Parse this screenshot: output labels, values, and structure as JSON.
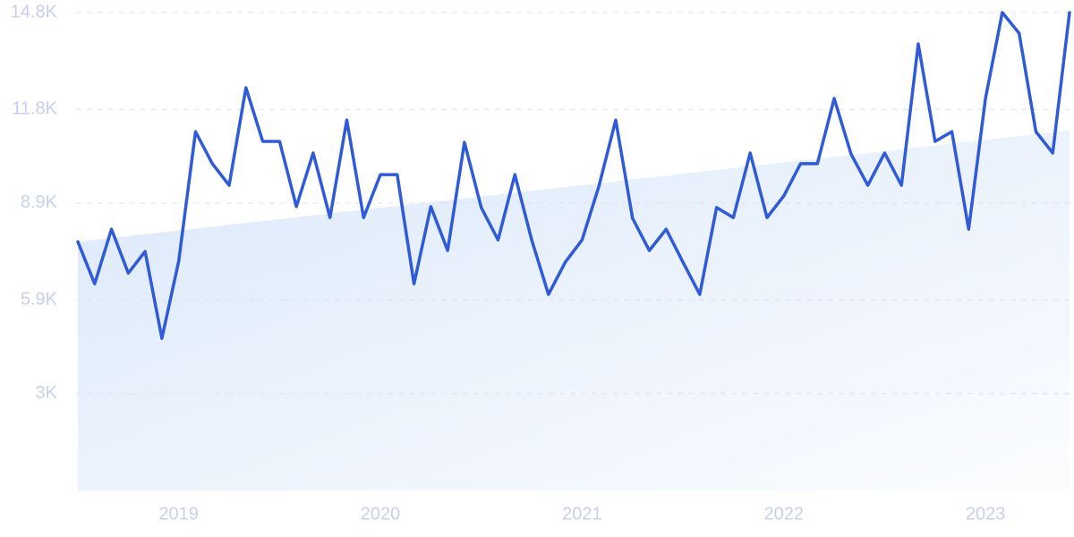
{
  "chart_data": {
    "type": "line",
    "categories": [
      null,
      null,
      null,
      null,
      null,
      null,
      "2019",
      null,
      null,
      null,
      null,
      null,
      null,
      null,
      null,
      null,
      null,
      null,
      "2020",
      null,
      null,
      null,
      null,
      null,
      null,
      null,
      null,
      null,
      null,
      null,
      "2021",
      null,
      null,
      null,
      null,
      null,
      null,
      null,
      null,
      null,
      null,
      null,
      "2022",
      null,
      null,
      null,
      null,
      null,
      null,
      null,
      null,
      null,
      null,
      null,
      "2023",
      null,
      null,
      null,
      null,
      null
    ],
    "series": [
      {
        "color": "#2f5bd8",
        "values": [
          7700,
          6400,
          8090,
          6730,
          7400,
          4710,
          7100,
          11110,
          10120,
          9450,
          12470,
          10810,
          10810,
          8790,
          10450,
          8450,
          11470,
          8450,
          9780,
          9780,
          6400,
          8790,
          7430,
          10780,
          8760,
          7760,
          9780,
          7760,
          6070,
          7070,
          7760,
          9420,
          11470,
          8430,
          7430,
          8090,
          7070,
          6070,
          8760,
          8450,
          10450,
          8450,
          9120,
          10120,
          10120,
          12140,
          10420,
          9450,
          10450,
          9450,
          13830,
          10810,
          11110,
          8090,
          12140,
          14800,
          14160,
          11110,
          10450,
          14800
        ]
      }
    ],
    "trend": [
      7700,
      11150
    ],
    "trend_color": "#dbe8fa",
    "ylim": [
      0,
      14800
    ],
    "yticks": [
      {
        "value": 3000,
        "label": "3K"
      },
      {
        "value": 5900,
        "label": "5.9K"
      },
      {
        "value": 8900,
        "label": "8.9K"
      },
      {
        "value": 11800,
        "label": "11.8K"
      },
      {
        "value": 14800,
        "label": "14.8K"
      }
    ],
    "grid": true
  }
}
